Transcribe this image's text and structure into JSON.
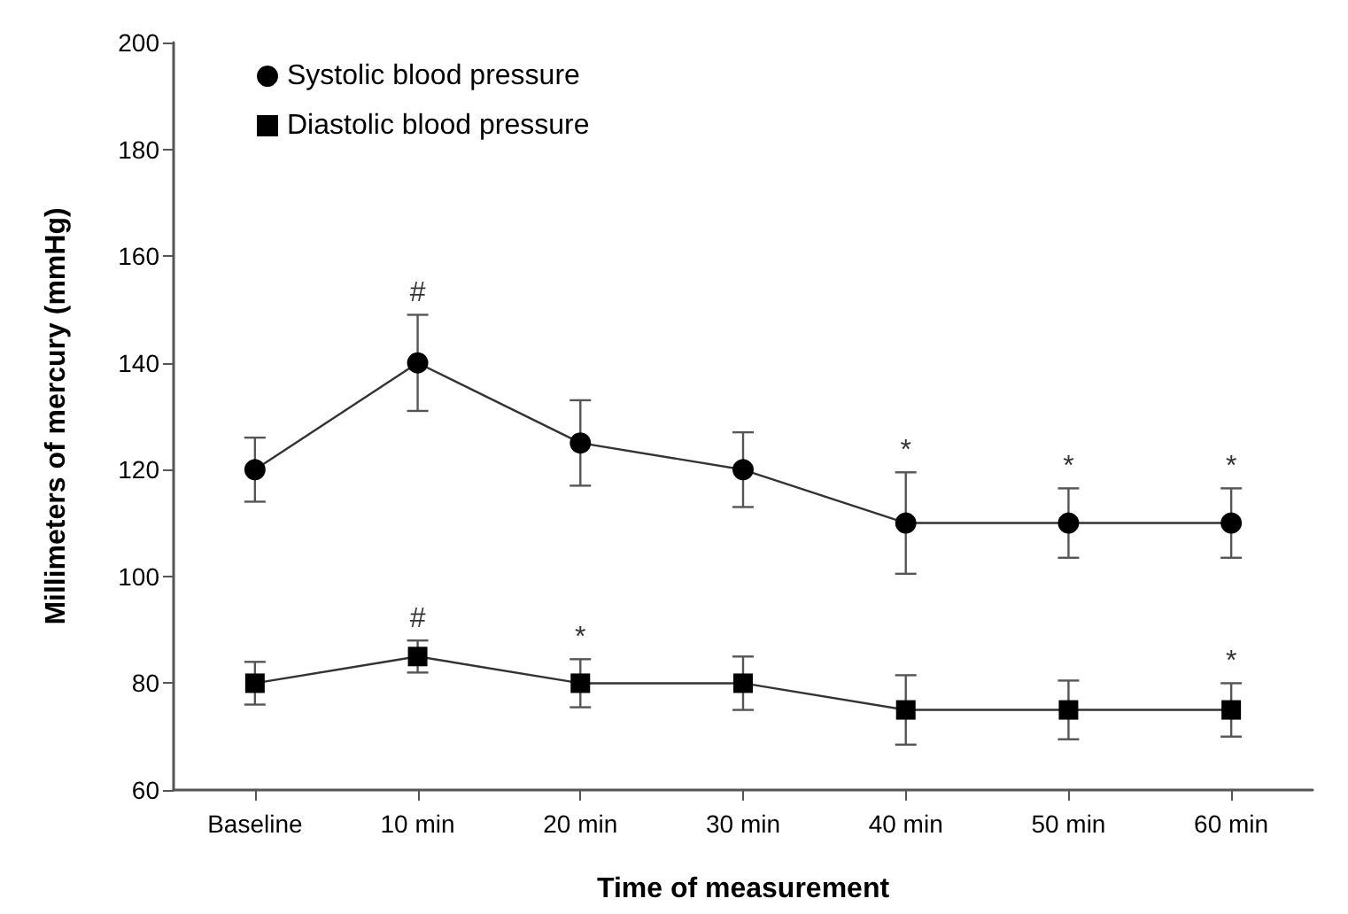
{
  "chart_data": {
    "type": "line",
    "xlabel": "Time of measurement",
    "ylabel": "Millimeters of mercury (mmHg)",
    "categories": [
      "Baseline",
      "10 min",
      "20 min",
      "30 min",
      "40 min",
      "50 min",
      "60 min"
    ],
    "series": [
      {
        "name": "Systolic blood pressure",
        "color": "#000000",
        "marker": "circle",
        "values": [
          120,
          140,
          125,
          120,
          110,
          110,
          110
        ],
        "errors": [
          6,
          9,
          8,
          7,
          9.5,
          6.5,
          6.5
        ]
      },
      {
        "name": "Diastolic blood pressure",
        "color": "#000000",
        "marker": "square",
        "values": [
          80,
          85,
          80,
          80,
          75,
          75,
          75
        ],
        "errors": [
          4,
          3,
          4.5,
          5,
          6.5,
          5.5,
          5
        ]
      }
    ],
    "ylim": [
      60,
      200
    ],
    "yticks": [
      60,
      80,
      100,
      120,
      140,
      160,
      180,
      200
    ],
    "grid": false,
    "legend": "top left",
    "line_style": "solid",
    "annotations": [
      {
        "text": "#",
        "x": "10 min",
        "y": 140
      },
      {
        "text": "*",
        "x": "40 min",
        "y": 110
      },
      {
        "text": "*",
        "x": "50 min",
        "y": 110
      },
      {
        "text": "*",
        "x": "60 min",
        "y": 110
      },
      {
        "text": "#",
        "x": "10 min",
        "y": 85
      },
      {
        "text": "*",
        "x": "20 min",
        "y": 80
      },
      {
        "text": "*",
        "x": "60 min",
        "y": 75
      }
    ]
  }
}
